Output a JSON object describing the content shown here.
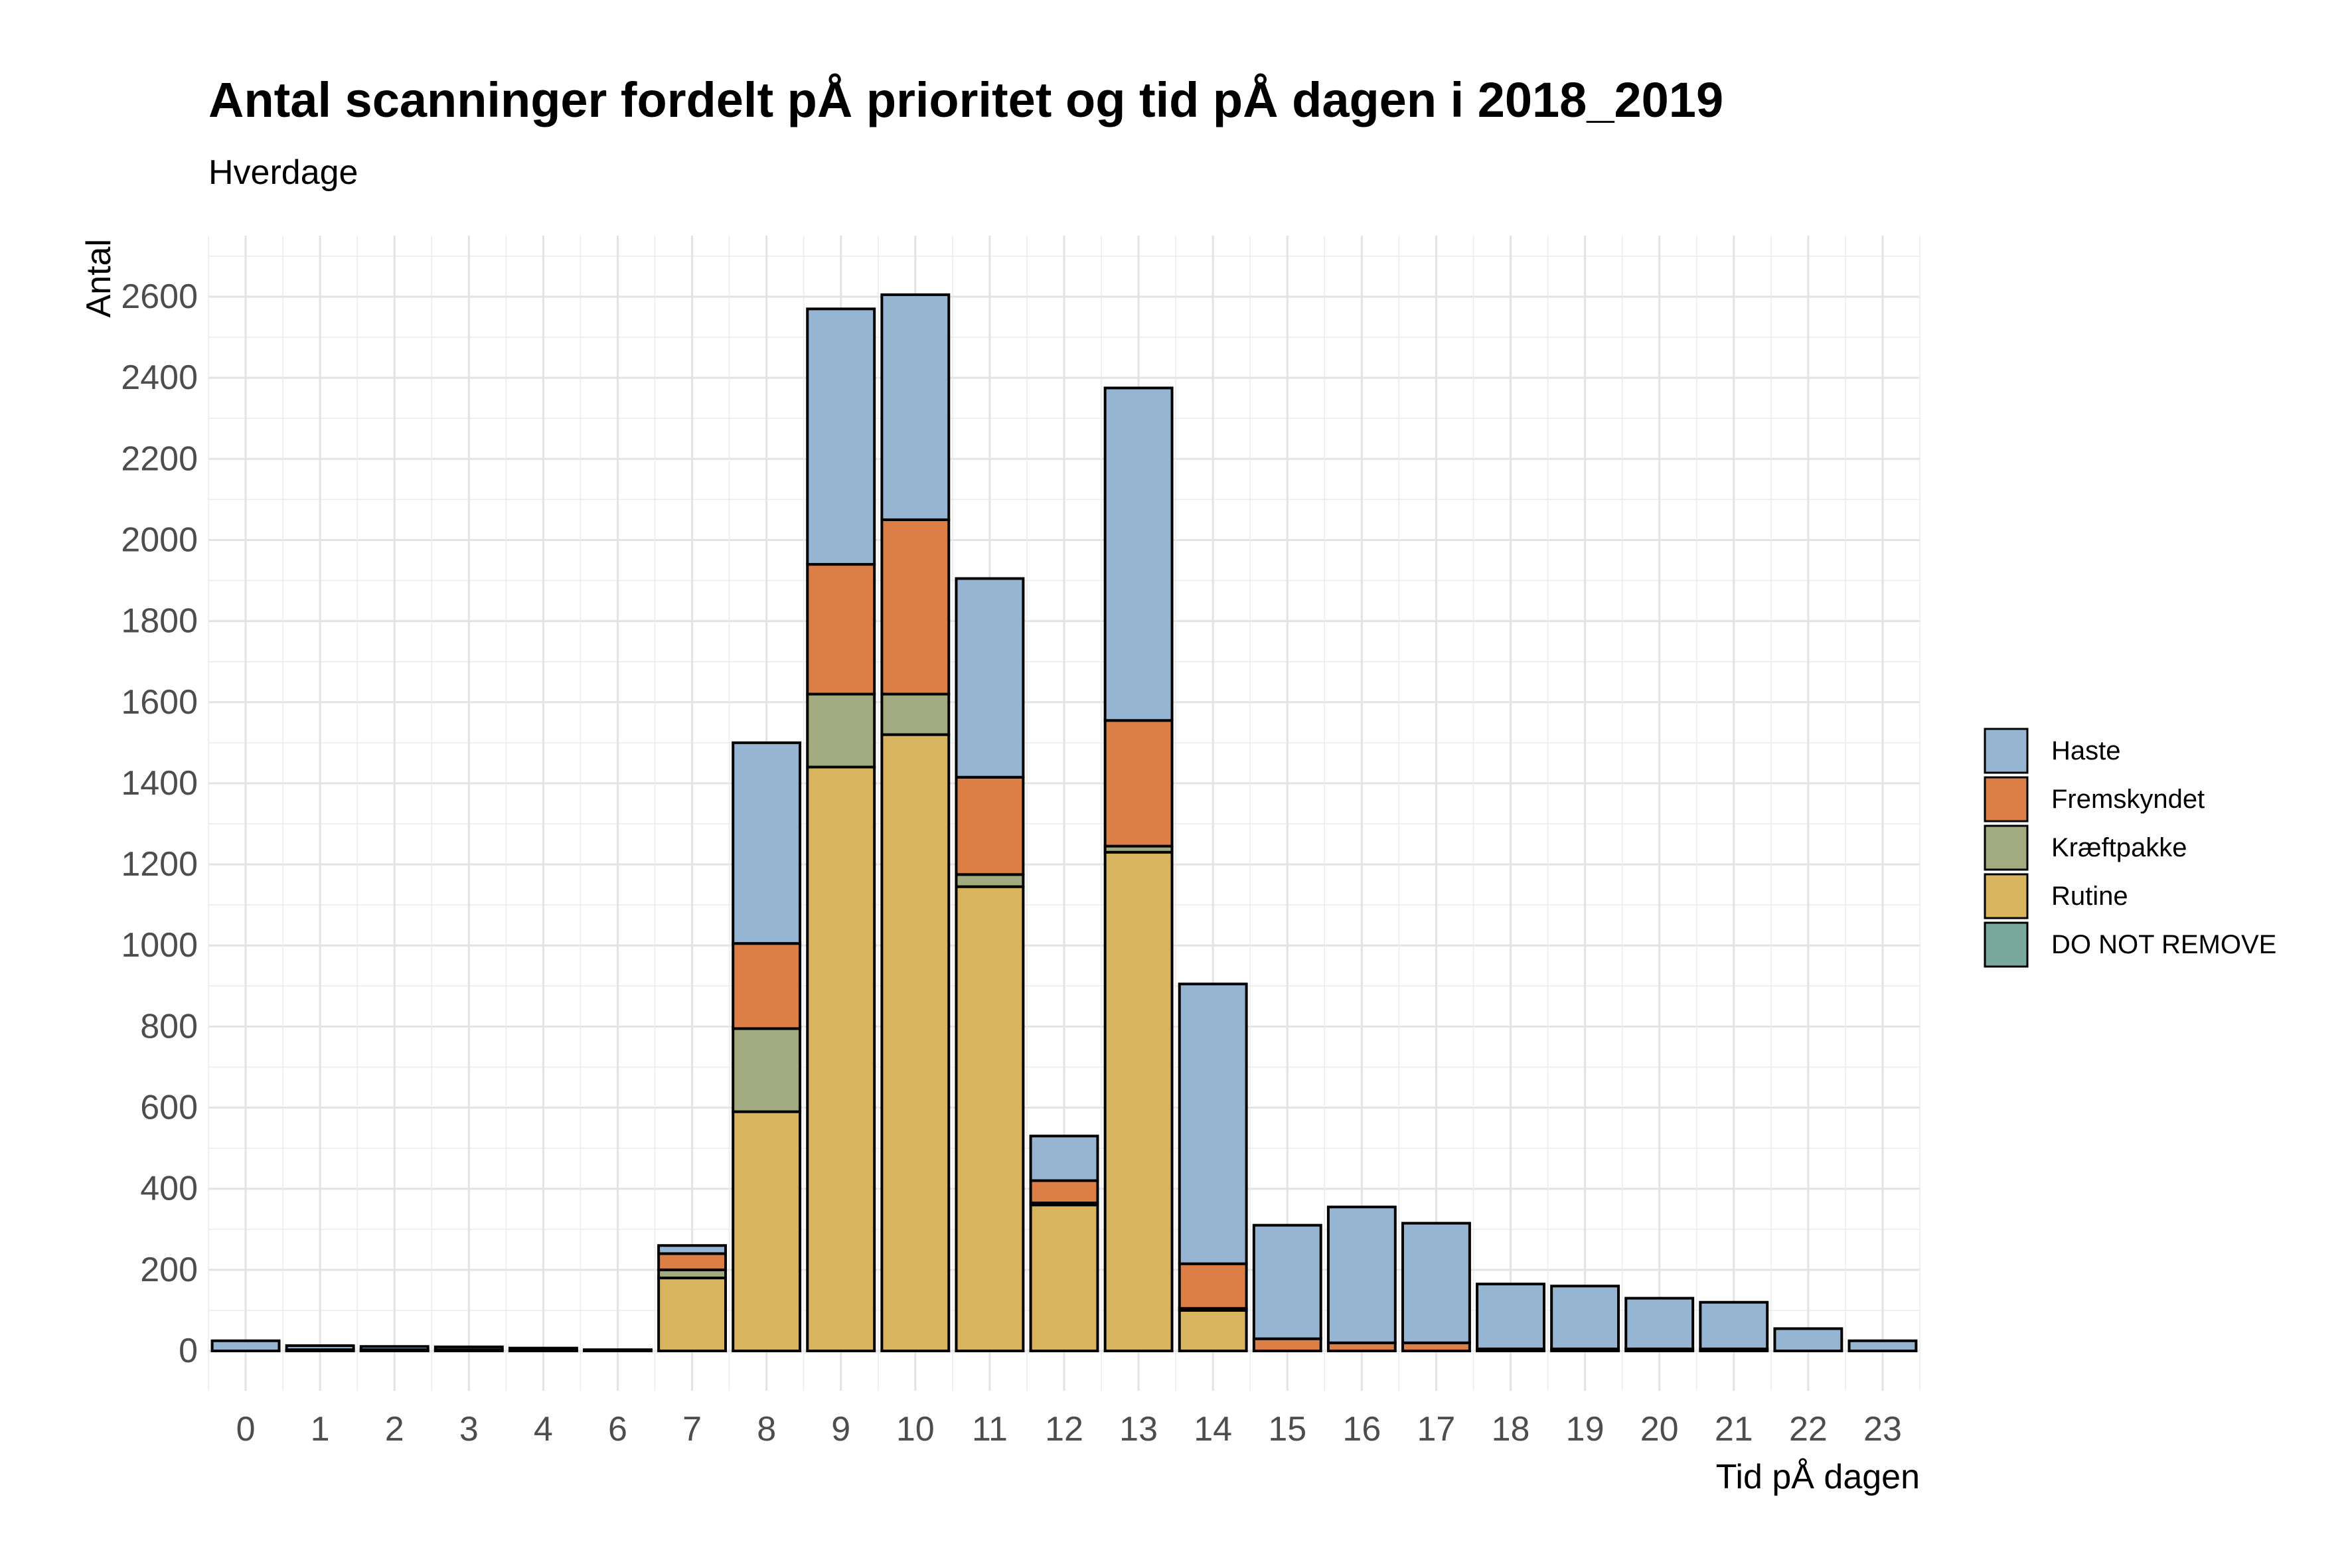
{
  "chart_data": {
    "type": "bar",
    "stacked": true,
    "title": "Antal scanninger fordelt pÅ prioritet og tid pÅ dagen i 2018_2019",
    "subtitle": "Hverdage",
    "xlabel": "Tid pÅ dagen",
    "ylabel": "Antal",
    "categories": [
      "0",
      "1",
      "2",
      "3",
      "4",
      "6",
      "7",
      "8",
      "9",
      "10",
      "11",
      "12",
      "13",
      "14",
      "15",
      "16",
      "17",
      "18",
      "19",
      "20",
      "21",
      "22",
      "23"
    ],
    "ylim": [
      -100,
      2780
    ],
    "yticks": [
      0,
      200,
      400,
      600,
      800,
      1000,
      1200,
      1400,
      1600,
      1800,
      2000,
      2200,
      2400,
      2600
    ],
    "grid": true,
    "legend_position": "right",
    "series": [
      {
        "name": "Rutine",
        "color": "#D8B45F",
        "values": [
          0,
          0,
          0,
          0,
          0,
          0,
          180,
          590,
          1440,
          1520,
          1145,
          360,
          1230,
          100,
          0,
          0,
          0,
          0,
          0,
          0,
          0,
          0,
          0
        ]
      },
      {
        "name": "Kræftpakke",
        "color": "#A2AA7F",
        "values": [
          0,
          0,
          0,
          0,
          0,
          0,
          20,
          205,
          180,
          100,
          30,
          5,
          15,
          5,
          0,
          0,
          0,
          0,
          0,
          0,
          0,
          0,
          0
        ]
      },
      {
        "name": "Fremskyndet",
        "color": "#DC7F47",
        "values": [
          0,
          3,
          3,
          3,
          2,
          0,
          40,
          210,
          320,
          430,
          240,
          55,
          310,
          110,
          30,
          20,
          20,
          5,
          5,
          5,
          5,
          0,
          0
        ]
      },
      {
        "name": "Haste",
        "color": "#95B5D3",
        "values": [
          25,
          10,
          8,
          7,
          5,
          3,
          20,
          495,
          630,
          555,
          490,
          110,
          820,
          690,
          280,
          335,
          295,
          160,
          155,
          125,
          115,
          55,
          25
        ]
      },
      {
        "name": "DO NOT REMOVE",
        "color": "#7AA89C",
        "values": [
          0,
          0,
          0,
          0,
          0,
          0,
          0,
          0,
          0,
          0,
          0,
          0,
          0,
          0,
          0,
          0,
          0,
          0,
          0,
          0,
          0,
          0,
          0
        ]
      }
    ],
    "legend_order": [
      "Haste",
      "Fremskyndet",
      "Kræftpakke",
      "Rutine",
      "DO NOT REMOVE"
    ]
  }
}
